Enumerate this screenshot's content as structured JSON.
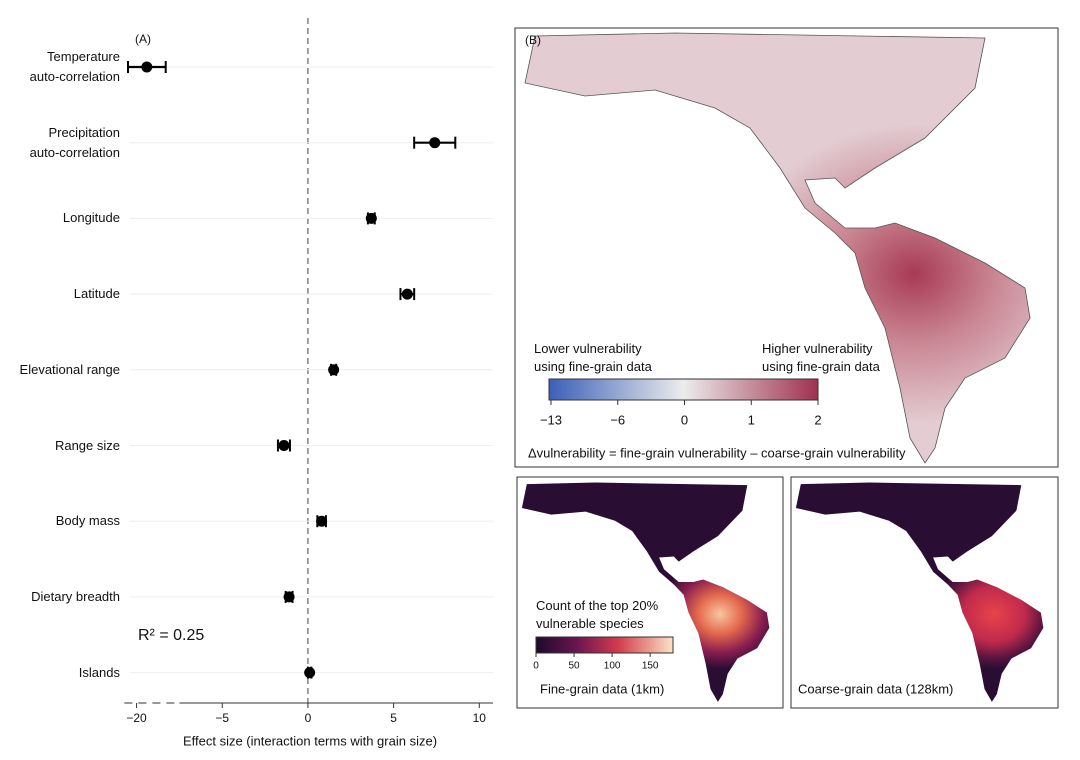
{
  "chart_data": {
    "type": "dot",
    "panel_label": "(A)",
    "categories": [
      "Temperature\nauto-correlation",
      "Precipitation\nauto-correlation",
      "Longitude",
      "Latitude",
      "Elevational range",
      "Range size",
      "Body mass",
      "Dietary breadth",
      "Islands"
    ],
    "values": [
      -19.4,
      7.4,
      3.7,
      5.8,
      1.5,
      -1.4,
      0.8,
      -1.1,
      0.1
    ],
    "errors": [
      1.1,
      1.2,
      0.2,
      0.4,
      0.15,
      0.35,
      0.25,
      0.2,
      0.1
    ],
    "color": "#000000",
    "xlim": [
      -20.5,
      10.8
    ],
    "xbreak": [
      -17.5,
      -7.5
    ],
    "xticks": [
      {
        "value": -20,
        "label": "−20"
      },
      {
        "value": -5,
        "label": "−5"
      },
      0,
      5,
      10
    ],
    "reference_line": 0,
    "xlabel": "Effect size (interaction terms with grain size)",
    "annotation": "R² = 0.25",
    "grid": true
  },
  "map_panel": {
    "panel_label": "(B)",
    "legend_low": "Lower vulnerability\nusing fine-grain data",
    "legend_high": "Higher vulnerability\nusing fine-grain data",
    "colorbar_ticks": [
      {
        "value": -13,
        "label": "−13"
      },
      {
        "value": -6,
        "label": "−6"
      },
      0,
      1,
      2
    ],
    "caption": "Δvulnerability = fine-grain vulnerability – coarse-grain vulnerability"
  },
  "count_panels": {
    "colorbar_title": "Count of the top 20%\nvulnerable species",
    "clim": [
      0,
      180
    ],
    "colorbar_ticks": [
      0,
      50,
      100,
      150
    ],
    "fine_label": "Fine-grain data (1km)",
    "coarse_label": "Coarse-grain data (128km)"
  }
}
